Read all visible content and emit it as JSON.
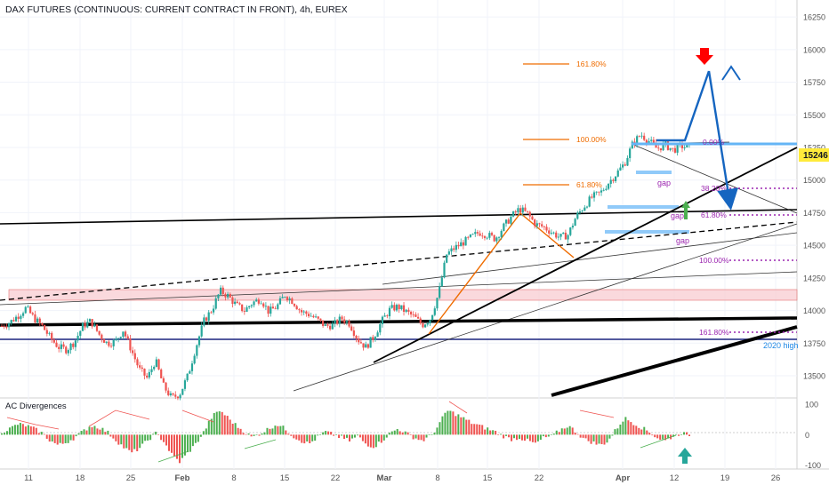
{
  "chart_data": {
    "type": "candlestick",
    "title": "DAX FUTURES (CONTINUOUS: CURRENT CONTRACT IN FRONT), 4h, EUREX",
    "price_axis": {
      "ticks": [
        "16250",
        "16000",
        "15750",
        "15500",
        "15250",
        "15000",
        "14750",
        "14500",
        "14250",
        "14000",
        "13750",
        "13500"
      ],
      "range": [
        13330,
        16380
      ]
    },
    "last_price": {
      "label": "15246",
      "value": 15246,
      "color": "#ffeb3b"
    },
    "time_axis": {
      "ticks": [
        "11",
        "18",
        "25",
        "Feb",
        "8",
        "15",
        "22",
        "Mar",
        "8",
        "15",
        "22",
        "Apr",
        "12",
        "19",
        "26"
      ]
    },
    "series": {
      "x_range": [
        0,
        86
      ],
      "close": [
        13880,
        13910,
        13960,
        14020,
        13940,
        13880,
        13790,
        13720,
        13700,
        13760,
        13880,
        13920,
        13820,
        13750,
        13760,
        13850,
        13700,
        13550,
        13480,
        13620,
        13420,
        13330,
        13360,
        13500,
        13720,
        13920,
        14010,
        14150,
        14110,
        14040,
        14000,
        14060,
        14090,
        13990,
        14030,
        14120,
        14070,
        13990,
        13970,
        13930,
        13880,
        13890,
        13940,
        13900,
        13780,
        13720,
        13800,
        13920,
        14010,
        14030,
        13990,
        13950,
        13890,
        13940,
        14130,
        14430,
        14480,
        14520,
        14560,
        14600,
        14580,
        14550,
        14640,
        14720,
        14780,
        14740,
        14660,
        14640,
        14600,
        14560,
        14580,
        14720,
        14800,
        14870,
        14900,
        14980,
        15050,
        15130,
        15280,
        15350,
        15300,
        15240,
        15270,
        15230,
        15260,
        15246
      ]
    },
    "fib_levels": {
      "upper": [
        {
          "label": "161.80%",
          "value": 16000,
          "color": "#ef6c00"
        },
        {
          "label": "100.00%",
          "value": 15350,
          "color": "#ef6c00"
        },
        {
          "label": "61.80%",
          "value": 15020,
          "color": "#ef6c00"
        }
      ],
      "lower": [
        {
          "label": "0.00%",
          "value": 15350,
          "color": "#9c27b0"
        },
        {
          "label": "38.20%",
          "value": 15005,
          "color": "#9c27b0"
        },
        {
          "label": "61.80%",
          "value": 14785,
          "color": "#9c27b0"
        },
        {
          "label": "100.00%",
          "value": 14430,
          "color": "#9c27b0"
        },
        {
          "label": "161.80%",
          "value": 13880,
          "color": "#9c27b0"
        }
      ]
    },
    "annotations": [
      {
        "label": "gap",
        "value": 15055
      },
      {
        "label": "gap",
        "value": 14780
      },
      {
        "label": "gap",
        "value": 14610
      },
      {
        "label": "2020 high",
        "value": 13790
      }
    ],
    "levels": {
      "blue_line": 13820,
      "pink_zone": [
        14140,
        14180
      ]
    },
    "oscillator": {
      "name": "AC Divergences",
      "ticks": [
        "100",
        "0",
        "-100"
      ],
      "range": [
        -110,
        115
      ],
      "values": [
        10,
        20,
        35,
        30,
        20,
        5,
        -20,
        -35,
        -25,
        -10,
        10,
        30,
        25,
        10,
        -15,
        -40,
        -60,
        -45,
        -20,
        5,
        -20,
        -65,
        -90,
        -60,
        -30,
        10,
        60,
        80,
        55,
        30,
        10,
        -10,
        5,
        20,
        35,
        20,
        -5,
        -20,
        -30,
        -10,
        10,
        0,
        -10,
        -20,
        -5,
        -30,
        -40,
        -20,
        5,
        20,
        5,
        -10,
        -20,
        -5,
        30,
        80,
        70,
        55,
        40,
        30,
        20,
        10,
        -5,
        -15,
        -10,
        -20,
        -30,
        -10,
        -5,
        15,
        30,
        10,
        -15,
        -25,
        -35,
        -20,
        20,
        55,
        40,
        25,
        10,
        -10,
        -20,
        -5,
        5,
        0
      ]
    },
    "arrows": [
      {
        "direction": "down",
        "color": "#ff0000"
      },
      {
        "direction": "up",
        "color": "#4caf50"
      },
      {
        "direction": "up",
        "color": "#26a69a"
      }
    ],
    "colors": {
      "up": "#26a69a",
      "down": "#ef5350",
      "bull_osc": "#4caf50",
      "bear_osc": "#ef5350",
      "fib_upper": "#ef6c00",
      "fib_lower": "#9c27b0",
      "projection": "#1565c0",
      "support": "#1a237e"
    }
  }
}
